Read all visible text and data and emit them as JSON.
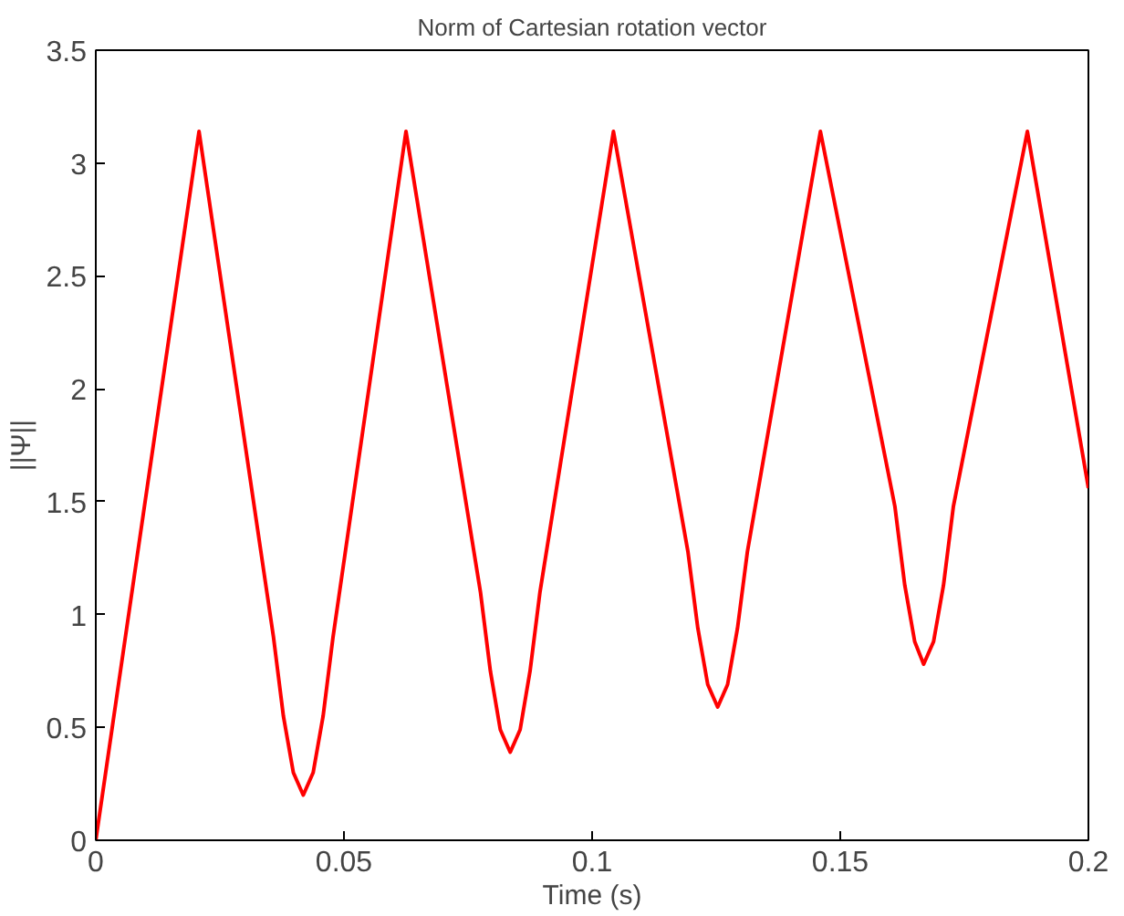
{
  "chart_data": {
    "type": "line",
    "title": "Norm of Cartesian rotation vector",
    "xlabel": "Time (s)",
    "ylabel": "||Ψ||",
    "xlim": [
      0,
      0.2
    ],
    "ylim": [
      0,
      3.5
    ],
    "xticks": [
      0,
      0.05,
      0.1,
      0.15,
      0.2
    ],
    "yticks": [
      0,
      0.5,
      1,
      1.5,
      2,
      2.5,
      3,
      3.5
    ],
    "grid": false,
    "marker": "none",
    "line_style": "solid",
    "series": [
      {
        "color": "#ff0000",
        "x": [
          0,
          0.0208,
          0.0358,
          0.0378,
          0.0398,
          0.0418,
          0.0438,
          0.0458,
          0.0478,
          0.0625,
          0.0775,
          0.0795,
          0.0815,
          0.0835,
          0.0855,
          0.0875,
          0.0895,
          0.1043,
          0.1193,
          0.1213,
          0.1233,
          0.1253,
          0.1273,
          0.1293,
          0.1313,
          0.146,
          0.161,
          0.163,
          0.165,
          0.1668,
          0.1688,
          0.1708,
          0.1728,
          0.1877,
          0.2
        ],
        "values": [
          0,
          3.14,
          0.9,
          0.55,
          0.3,
          0.2,
          0.3,
          0.55,
          0.9,
          3.14,
          1.1,
          0.75,
          0.49,
          0.39,
          0.49,
          0.75,
          1.1,
          3.14,
          1.28,
          0.94,
          0.69,
          0.59,
          0.69,
          0.94,
          1.28,
          3.14,
          1.48,
          1.13,
          0.88,
          0.78,
          0.88,
          1.13,
          1.48,
          3.14,
          1.56
        ]
      }
    ]
  }
}
